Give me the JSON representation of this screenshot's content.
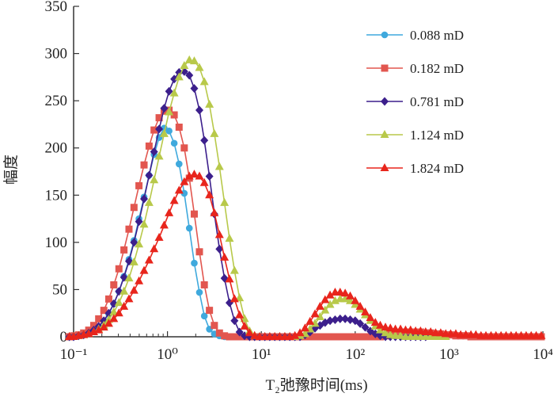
{
  "chart_data": {
    "type": "line",
    "title": "",
    "xlabel": "T₂弛豫时间(ms)",
    "ylabel": "幅度",
    "x_scale": "log",
    "xlim": [
      0.1,
      10000
    ],
    "ylim": [
      0,
      350
    ],
    "x_tick_labels": [
      "10⁻¹",
      "10⁰",
      "10¹",
      "10²",
      "10³",
      "10⁴"
    ],
    "y_ticks": [
      0,
      50,
      100,
      150,
      200,
      250,
      300,
      350
    ],
    "grid": false,
    "legend_position": "top-right",
    "series": [
      {
        "name": "0.088 mD",
        "color": "#3fa9dd",
        "marker": "circle",
        "x": [
          0.08,
          0.09,
          0.1,
          0.113,
          0.128,
          0.145,
          0.164,
          0.185,
          0.21,
          0.237,
          0.268,
          0.304,
          0.344,
          0.389,
          0.44,
          0.497,
          0.563,
          0.637,
          0.72,
          0.815,
          0.922,
          1.04,
          1.18,
          1.33,
          1.51,
          1.71,
          1.93,
          2.19,
          2.47,
          2.8,
          3.16,
          3.58,
          4.05,
          4.58,
          5.18,
          5.86,
          6.63,
          7.5,
          8.48,
          9.6,
          10.9,
          12.3,
          13.9
        ],
        "y": [
          0,
          0,
          0,
          1,
          2,
          4,
          7,
          11,
          17,
          24,
          35,
          48,
          64,
          82,
          102,
          125,
          148,
          171,
          193,
          211,
          221,
          218,
          205,
          183,
          152,
          115,
          78,
          47,
          22,
          8,
          3,
          1,
          0,
          0,
          0,
          0,
          0,
          0,
          0,
          0,
          0,
          0,
          0
        ]
      },
      {
        "name": "0.182 mD",
        "color": "#e2564f",
        "marker": "square",
        "x": [
          0.08,
          0.09,
          0.1,
          0.113,
          0.128,
          0.145,
          0.164,
          0.185,
          0.21,
          0.237,
          0.268,
          0.304,
          0.344,
          0.389,
          0.44,
          0.497,
          0.563,
          0.637,
          0.72,
          0.815,
          0.922,
          1.04,
          1.18,
          1.33,
          1.51,
          1.71,
          1.93,
          2.19,
          2.47,
          2.8,
          3.16,
          3.58,
          4.05,
          4.58,
          5.18,
          5.86,
          6.63,
          7.5,
          8.48,
          9.6,
          10.9,
          12.3,
          13.9,
          15.7,
          17.8,
          20.1,
          22.8,
          25.8,
          29.2,
          33,
          37.3,
          42.2,
          47.8,
          54,
          61.1,
          69.1,
          78.2,
          88.5,
          100,
          113,
          128,
          145,
          164,
          185,
          210,
          237,
          268,
          304,
          344,
          389,
          440,
          497,
          563,
          637,
          720,
          815,
          922,
          1040,
          1180,
          1330,
          1510,
          1710,
          1930,
          2190,
          2470,
          2800,
          3160,
          3580,
          4050,
          4580,
          5180,
          5860,
          6630,
          7500,
          8480,
          9600
        ],
        "y": [
          0,
          0,
          1,
          2,
          4,
          7,
          12,
          19,
          28,
          40,
          55,
          72,
          92,
          114,
          137,
          160,
          182,
          202,
          219,
          232,
          239,
          240,
          235,
          222,
          200,
          168,
          130,
          90,
          55,
          28,
          12,
          4,
          1,
          0,
          0,
          0,
          0,
          0,
          0,
          0,
          0,
          0,
          0,
          0,
          0,
          0,
          0,
          0,
          0,
          0,
          0,
          0,
          0,
          0,
          0,
          0,
          0,
          0,
          0,
          0,
          0,
          0,
          0,
          0,
          1,
          2,
          3,
          4,
          5,
          5,
          5,
          5,
          4,
          4,
          3,
          3,
          2,
          2,
          1,
          1,
          1,
          0,
          0,
          0,
          0,
          0,
          0,
          0,
          0,
          0,
          0,
          0,
          0,
          0,
          0,
          0
        ]
      },
      {
        "name": "0.781 mD",
        "color": "#3c1f8c",
        "marker": "diamond",
        "x": [
          0.08,
          0.09,
          0.1,
          0.113,
          0.128,
          0.145,
          0.164,
          0.185,
          0.21,
          0.237,
          0.268,
          0.304,
          0.344,
          0.389,
          0.44,
          0.497,
          0.563,
          0.637,
          0.72,
          0.815,
          0.922,
          1.04,
          1.18,
          1.33,
          1.51,
          1.71,
          1.93,
          2.19,
          2.47,
          2.8,
          3.16,
          3.58,
          4.05,
          4.58,
          5.18,
          5.86,
          6.63,
          7.5,
          8.48,
          9.6,
          10.9,
          12.3,
          13.9,
          15.7,
          17.8,
          20.1,
          22.8,
          25.8,
          29.2,
          33,
          37.3,
          42.2,
          47.8,
          54,
          61.1,
          69.1,
          78.2,
          88.5,
          100,
          113,
          128,
          145,
          164,
          185,
          210,
          237,
          268,
          304,
          344,
          389,
          440,
          497,
          563
        ],
        "y": [
          0,
          0,
          0,
          1,
          2,
          4,
          7,
          11,
          17,
          25,
          35,
          48,
          63,
          80,
          100,
          122,
          146,
          171,
          196,
          220,
          242,
          260,
          273,
          280,
          281,
          277,
          263,
          240,
          208,
          170,
          130,
          93,
          62,
          36,
          17,
          5,
          1,
          0,
          0,
          0,
          0,
          0,
          0,
          0,
          0,
          0,
          0,
          0,
          2,
          5,
          9,
          12,
          15,
          17,
          18,
          19,
          19,
          18,
          17,
          14,
          10,
          6,
          3,
          1,
          0,
          0,
          0,
          0,
          0,
          0,
          0,
          0,
          0
        ]
      },
      {
        "name": "1.124 mD",
        "color": "#b8c94a",
        "marker": "triangle",
        "x": [
          0.08,
          0.09,
          0.1,
          0.113,
          0.128,
          0.145,
          0.164,
          0.185,
          0.21,
          0.237,
          0.268,
          0.304,
          0.344,
          0.389,
          0.44,
          0.497,
          0.563,
          0.637,
          0.72,
          0.815,
          0.922,
          1.04,
          1.18,
          1.33,
          1.51,
          1.71,
          1.93,
          2.19,
          2.47,
          2.8,
          3.16,
          3.58,
          4.05,
          4.58,
          5.18,
          5.86,
          6.63,
          7.5,
          8.48,
          9.6,
          10.9,
          12.3,
          13.9,
          15.7,
          17.8,
          20.1,
          22.8,
          25.8,
          29.2,
          33,
          37.3,
          42.2,
          47.8,
          54,
          61.1,
          69.1,
          78.2,
          88.5,
          100,
          113,
          128,
          145,
          164,
          185,
          210,
          237,
          268,
          304,
          344,
          389,
          440,
          497,
          563,
          637,
          720,
          815,
          922
        ],
        "y": [
          0,
          0,
          0,
          1,
          2,
          3,
          5,
          8,
          12,
          18,
          26,
          36,
          48,
          62,
          79,
          98,
          119,
          142,
          166,
          191,
          215,
          238,
          258,
          275,
          287,
          293,
          292,
          285,
          270,
          246,
          215,
          180,
          142,
          104,
          70,
          41,
          19,
          6,
          1,
          0,
          0,
          0,
          0,
          0,
          0,
          0,
          0,
          1,
          3,
          8,
          14,
          21,
          28,
          34,
          38,
          40,
          40,
          38,
          34,
          29,
          23,
          17,
          11,
          7,
          4,
          2,
          1,
          1,
          0,
          0,
          0,
          0,
          0,
          0,
          0,
          0,
          0
        ]
      },
      {
        "name": "1.824 mD",
        "color": "#e8251c",
        "marker": "triangle",
        "x": [
          0.08,
          0.09,
          0.1,
          0.113,
          0.128,
          0.145,
          0.164,
          0.185,
          0.21,
          0.237,
          0.268,
          0.304,
          0.344,
          0.389,
          0.44,
          0.497,
          0.563,
          0.637,
          0.72,
          0.815,
          0.922,
          1.04,
          1.18,
          1.33,
          1.51,
          1.71,
          1.93,
          2.19,
          2.47,
          2.8,
          3.16,
          3.58,
          4.05,
          4.58,
          5.18,
          5.86,
          6.63,
          7.5,
          8.48,
          9.6,
          10.9,
          12.3,
          13.9,
          15.7,
          17.8,
          20.1,
          22.8,
          25.8,
          29.2,
          33,
          37.3,
          42.2,
          47.8,
          54,
          61.1,
          69.1,
          78.2,
          88.5,
          100,
          113,
          128,
          145,
          164,
          185,
          210,
          237,
          268,
          304,
          344,
          389,
          440,
          497,
          563,
          637,
          720,
          815,
          922,
          1040,
          1180,
          1330,
          1510,
          1710,
          1930,
          2190,
          2470,
          2800,
          3160,
          3580,
          4050,
          4580,
          5180,
          5860,
          6630,
          7500,
          8480,
          9600
        ],
        "y": [
          0,
          0,
          0,
          1,
          2,
          3,
          5,
          7,
          10,
          14,
          19,
          25,
          32,
          40,
          49,
          59,
          70,
          81,
          93,
          105,
          118,
          131,
          144,
          155,
          164,
          170,
          172,
          170,
          163,
          150,
          131,
          108,
          84,
          61,
          40,
          23,
          11,
          4,
          1,
          0,
          0,
          0,
          0,
          0,
          0,
          0,
          1,
          4,
          9,
          16,
          24,
          32,
          39,
          44,
          47,
          47,
          46,
          43,
          38,
          32,
          26,
          20,
          15,
          12,
          10,
          9,
          8,
          8,
          7,
          7,
          6,
          6,
          5,
          5,
          4,
          4,
          3,
          3,
          3,
          2,
          2,
          2,
          2,
          1,
          1,
          1,
          1,
          1,
          1,
          1,
          1,
          1,
          1,
          1,
          1,
          1
        ]
      }
    ]
  }
}
